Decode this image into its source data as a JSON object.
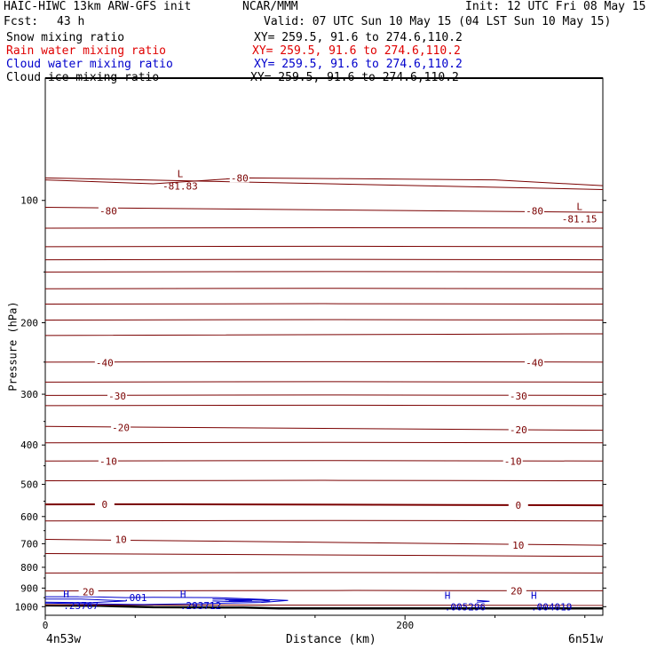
{
  "header": {
    "model": "HAIC-HIWC 13km ARW-GFS init",
    "org": "NCAR/MMM",
    "init": "Init: 12 UTC Fri 08 May 15",
    "fcst_label": "Fcst:",
    "fcst_value": "43 h",
    "valid": "Valid: 07 UTC Sun 10 May 15 (04 LST Sun 10 May 15)"
  },
  "fields": [
    {
      "name": "Snow mixing ratio",
      "xy": "XY= 259.5, 91.6 to 274.6,110.2",
      "color": "#000000"
    },
    {
      "name": "Rain water mixing ratio",
      "xy": "XY= 259.5, 91.6 to 274.6,110.2",
      "color": "#e00000"
    },
    {
      "name": "Cloud water mixing ratio",
      "xy": "XY= 259.5, 91.6 to 274.6,110.2",
      "color": "#0000cc"
    },
    {
      "name": "Cloud ice mixing ratio",
      "xy": "XY= 259.5, 91.6 to 274.6,110.2",
      "color": "#000000"
    }
  ],
  "chart_data": {
    "type": "line",
    "xlabel": "Distance (km)",
    "ylabel": "Pressure (hPa)",
    "xlim": [
      0,
      310
    ],
    "ylim": [
      50,
      1050
    ],
    "y_log_scale": true,
    "x_ticks": [
      "0",
      "200"
    ],
    "x_tick_values": [
      0,
      200
    ],
    "y_ticks": [
      "100",
      "200",
      "300",
      "400",
      "500",
      "600",
      "700",
      "800",
      "900",
      "1000"
    ],
    "y_tick_values": [
      100,
      200,
      300,
      400,
      500,
      600,
      700,
      800,
      900,
      1000
    ],
    "left_endpoint": "4n53w",
    "right_endpoint": "6n51w",
    "temperature_contour_color": "#7a0000",
    "cloud_contour_color": "#0000cc",
    "temperature_contour_labels": [
      {
        "text": "-80",
        "x": 35,
        "p": 106
      },
      {
        "text": "-80",
        "x": 108,
        "p": 88
      },
      {
        "text": "-80",
        "x": 272,
        "p": 106
      },
      {
        "text": "-40",
        "x": 33,
        "p": 251
      },
      {
        "text": "-40",
        "x": 272,
        "p": 251
      },
      {
        "text": "-30",
        "x": 40,
        "p": 303
      },
      {
        "text": "-30",
        "x": 263,
        "p": 303
      },
      {
        "text": "-20",
        "x": 42,
        "p": 362
      },
      {
        "text": "-20",
        "x": 263,
        "p": 367
      },
      {
        "text": "-10",
        "x": 35,
        "p": 438
      },
      {
        "text": "-10",
        "x": 260,
        "p": 438
      },
      {
        "text": "0",
        "x": 33,
        "p": 560
      },
      {
        "text": "0",
        "x": 263,
        "p": 563
      },
      {
        "text": "10",
        "x": 42,
        "p": 683
      },
      {
        "text": "10",
        "x": 263,
        "p": 706
      },
      {
        "text": "20",
        "x": 24,
        "p": 920
      },
      {
        "text": "20",
        "x": 262,
        "p": 914
      }
    ],
    "lows": [
      {
        "label": "L",
        "value": "-81.83",
        "x": 75,
        "p": 88
      },
      {
        "label": "L",
        "value": "-81.15",
        "x": 297,
        "p": 106
      }
    ],
    "highs": [
      {
        "label": "H",
        "value": ".23767",
        "x": 10,
        "p": 968
      },
      {
        "label": "H",
        "value": ".293712",
        "x": 75,
        "p": 968
      },
      {
        "label": "H",
        "value": ".005296",
        "x": 222,
        "p": 975
      },
      {
        "label": "H",
        "value": ".004019",
        "x": 270,
        "p": 975
      }
    ],
    "cloud_contour_labels": [
      {
        "text": ".001",
        "x": 50,
        "p": 950
      }
    ]
  }
}
